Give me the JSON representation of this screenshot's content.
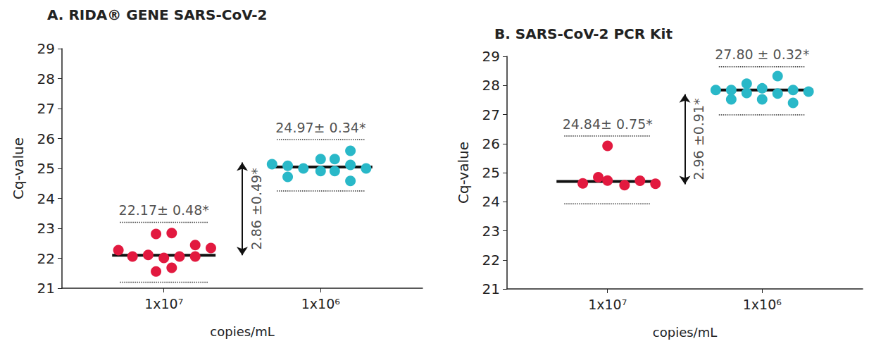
{
  "chart_data": [
    {
      "type": "scatter",
      "title": "A. RIDA® GENE SARS-CoV-2",
      "x_label": "copies/mL",
      "y_label": "Cq-value",
      "xlim": [
        0.35,
        2.65
      ],
      "xticks": [
        {
          "value": 1,
          "label": "1x10⁷"
        },
        {
          "value": 2,
          "label": "1x10⁶"
        }
      ],
      "ylim": [
        21,
        29
      ],
      "yticks": [
        21,
        22,
        23,
        24,
        25,
        26,
        27,
        28,
        29
      ],
      "series": [
        {
          "color": "#e2193f",
          "x": [
            0.71,
            0.8,
            0.9,
            0.95,
            0.95,
            1.0,
            1.05,
            1.05,
            1.1,
            1.2,
            1.2,
            1.3
          ],
          "values": [
            22.27,
            22.06,
            22.11,
            22.81,
            21.56,
            22.01,
            22.84,
            21.68,
            22.06,
            22.44,
            22.06,
            22.34
          ],
          "mean_line": 22.1,
          "range_lines": [
            21.2,
            23.2
          ],
          "annotation": "22.17± 0.48*"
        },
        {
          "color": "#29b8c8",
          "x": [
            1.69,
            1.79,
            1.79,
            1.89,
            2.0,
            2.0,
            2.09,
            2.09,
            2.19,
            2.19,
            2.19,
            2.29
          ],
          "values": [
            25.14,
            25.09,
            24.72,
            25.0,
            25.31,
            24.91,
            25.31,
            24.91,
            25.59,
            25.12,
            24.58,
            25.0
          ],
          "mean_line": 25.05,
          "range_lines": [
            24.25,
            25.96
          ],
          "annotation": "24.97± 0.34*"
        }
      ],
      "arrow": {
        "label": "2.86 ±0.49*",
        "from": 22.1,
        "to": 25.2
      }
    },
    {
      "type": "scatter",
      "title": "B. SARS-CoV-2 PCR Kit",
      "x_label": "copies/mL",
      "y_label": "Cq-value",
      "xlim": [
        0.35,
        2.65
      ],
      "xticks": [
        {
          "value": 1,
          "label": "1x10⁷"
        },
        {
          "value": 2,
          "label": "1x10⁶"
        }
      ],
      "ylim": [
        21,
        29
      ],
      "yticks": [
        21,
        22,
        23,
        24,
        25,
        26,
        27,
        28,
        29
      ],
      "series": [
        {
          "color": "#e2193f",
          "x": [
            0.84,
            0.94,
            1.0,
            1.0,
            1.11,
            1.21,
            1.31
          ],
          "values": [
            24.63,
            24.84,
            24.73,
            25.92,
            24.57,
            24.72,
            24.62
          ],
          "mean_line": 24.7,
          "range_lines": [
            23.93,
            26.26
          ],
          "annotation": "24.84± 0.75*"
        },
        {
          "color": "#29b8c8",
          "x": [
            1.7,
            1.8,
            1.8,
            1.9,
            1.9,
            2.0,
            2.0,
            2.1,
            2.1,
            2.2,
            2.2,
            2.3
          ],
          "values": [
            27.84,
            27.84,
            27.52,
            28.06,
            27.74,
            27.9,
            27.52,
            28.32,
            27.72,
            27.84,
            27.4,
            27.79
          ],
          "mean_line": 27.84,
          "range_lines": [
            26.99,
            28.64
          ],
          "annotation": "27.80 ± 0.32*"
        }
      ],
      "arrow": {
        "label": "2.96 ±0.91*",
        "from": 24.6,
        "to": 27.7
      }
    }
  ]
}
